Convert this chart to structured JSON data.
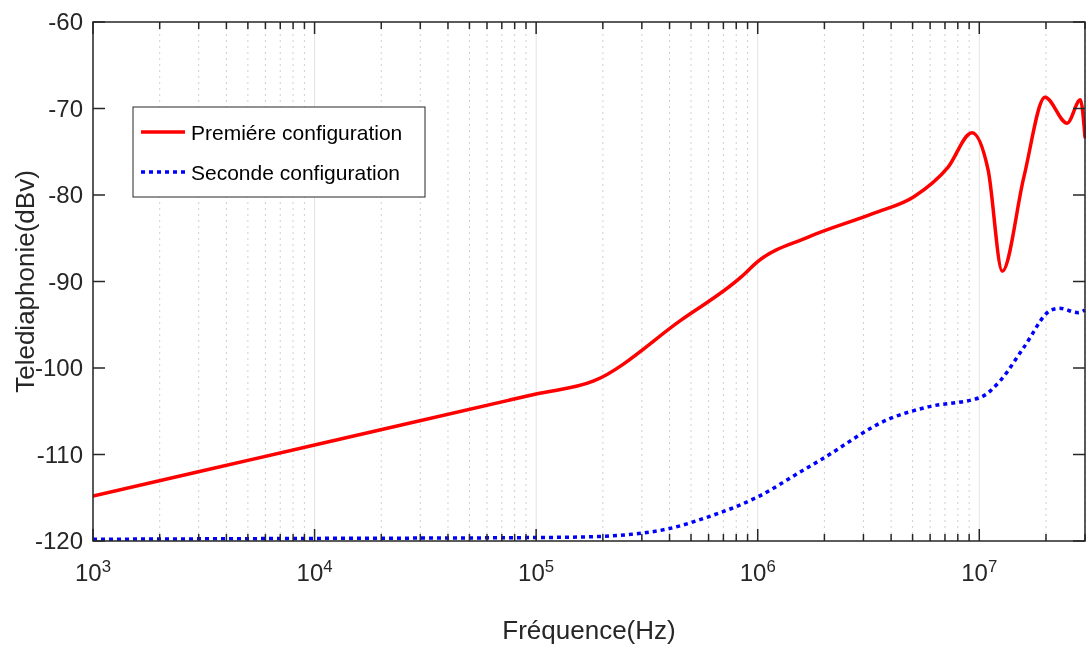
{
  "chart_data": {
    "type": "line",
    "xlabel": "Fréquence(Hz)",
    "ylabel": "Telediaphonie(dBv)",
    "log": "x",
    "grid": "x",
    "legend": "top left",
    "xlim": [
      1000,
      30000000
    ],
    "ylim": [
      -120,
      -60
    ],
    "xticks": [
      {
        "value": 1000,
        "label": "10$^{3}$"
      },
      {
        "value": 2000,
        "label": null
      },
      {
        "value": 3000,
        "label": null
      },
      {
        "value": 4000,
        "label": null
      },
      {
        "value": 5000,
        "label": null
      },
      {
        "value": 6000,
        "label": null
      },
      {
        "value": 7000,
        "label": null
      },
      {
        "value": 8000,
        "label": null
      },
      {
        "value": 9000,
        "label": null
      },
      {
        "value": 10000,
        "label": "10$^{4}$"
      },
      {
        "value": 20000,
        "label": null
      },
      {
        "value": 30000,
        "label": null
      },
      {
        "value": 40000,
        "label": null
      },
      {
        "value": 50000,
        "label": null
      },
      {
        "value": 60000,
        "label": null
      },
      {
        "value": 70000,
        "label": null
      },
      {
        "value": 80000,
        "label": null
      },
      {
        "value": 90000,
        "label": null
      },
      {
        "value": 100000,
        "label": "10$^{5}$"
      },
      {
        "value": 200000,
        "label": null
      },
      {
        "value": 300000,
        "label": null
      },
      {
        "value": 400000,
        "label": null
      },
      {
        "value": 500000,
        "label": null
      },
      {
        "value": 600000,
        "label": null
      },
      {
        "value": 700000,
        "label": null
      },
      {
        "value": 800000,
        "label": null
      },
      {
        "value": 900000,
        "label": null
      },
      {
        "value": 1000000,
        "label": "10$^{6}$"
      },
      {
        "value": 2000000,
        "label": null
      },
      {
        "value": 3000000,
        "label": null
      },
      {
        "value": 4000000,
        "label": null
      },
      {
        "value": 5000000,
        "label": null
      },
      {
        "value": 6000000,
        "label": null
      },
      {
        "value": 7000000,
        "label": null
      },
      {
        "value": 8000000,
        "label": null
      },
      {
        "value": 9000000,
        "label": null
      },
      {
        "value": 10000000,
        "label": "10$^{7}$"
      },
      {
        "value": 20000000,
        "label": null
      },
      {
        "value": 30000000,
        "label": null
      }
    ],
    "yticks": [
      -120,
      -110,
      -100,
      -90,
      -80,
      -70,
      -60
    ],
    "series": [
      {
        "name": "Premiére configuration",
        "color": "#ff0000",
        "line_style": "solid",
        "x": [
          1000,
          10000,
          100000,
          182000,
          449000,
          840000,
          1000000,
          1680000,
          3350000,
          5070000,
          7220000,
          9270000,
          10960000,
          12700000,
          15900000,
          19800000,
          24900000,
          28600000,
          30000000
        ],
        "values": [
          -114.8,
          -108.9,
          -103,
          -101.5,
          -94.5,
          -89.5,
          -87.7,
          -84.9,
          -82.1,
          -80.2,
          -76.8,
          -72.8,
          -77.1,
          -88.8,
          -77.9,
          -68.7,
          -71.7,
          -69,
          -73.3
        ]
      },
      {
        "name": "Seconde configuration",
        "color": "#0000ff",
        "line_style": "dotted",
        "x": [
          1000,
          10000,
          100000,
          180000,
          250000,
          393000,
          600000,
          1000000,
          1560000,
          1930000,
          3990000,
          5870000,
          10100000,
          12500000,
          15900000,
          21100000,
          23000000,
          27900000,
          30000000
        ],
        "values": [
          -119.8,
          -119.7,
          -119.6,
          -119.5,
          -119.3,
          -118.6,
          -117.2,
          -114.9,
          -112,
          -110.6,
          -105.8,
          -104.5,
          -103.4,
          -101.4,
          -97.6,
          -93.3,
          -93.1,
          -93.6,
          -93.3
        ]
      }
    ]
  }
}
